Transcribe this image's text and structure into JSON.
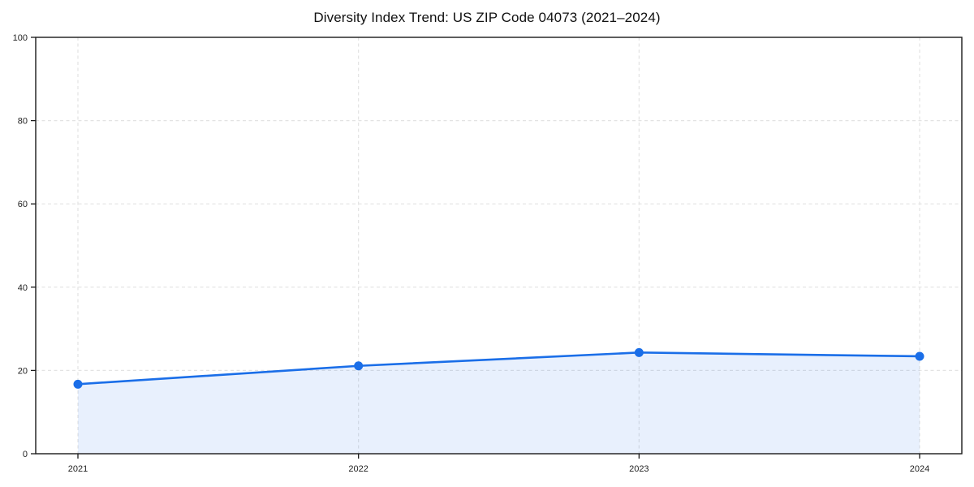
{
  "page": {
    "background_color": "#ffffff"
  },
  "chart_data": {
    "type": "line",
    "title": "Diversity Index Trend: US ZIP Code 04073 (2021–2024)",
    "x": [
      "2021",
      "2022",
      "2023",
      "2024"
    ],
    "series": [
      {
        "name": "Diversity Index",
        "values": [
          16.7,
          21.1,
          24.3,
          23.4
        ]
      }
    ],
    "xlabel": "",
    "ylabel": "",
    "ylim": [
      0,
      100
    ],
    "yticks": [
      0,
      20,
      40,
      60,
      80,
      100
    ],
    "grid": "dashed-both-axes",
    "legend": "none",
    "area_fill": true,
    "marker": "circle",
    "colors": {
      "line": "#1a6ee8",
      "marker": "#1a6ee8",
      "area": "rgba(26,110,232,0.10)",
      "grid": "#e3e3e3",
      "spine": "#1a1a1a",
      "tick_label": "#222222",
      "title": "#111111",
      "background": "#ffffff"
    }
  }
}
